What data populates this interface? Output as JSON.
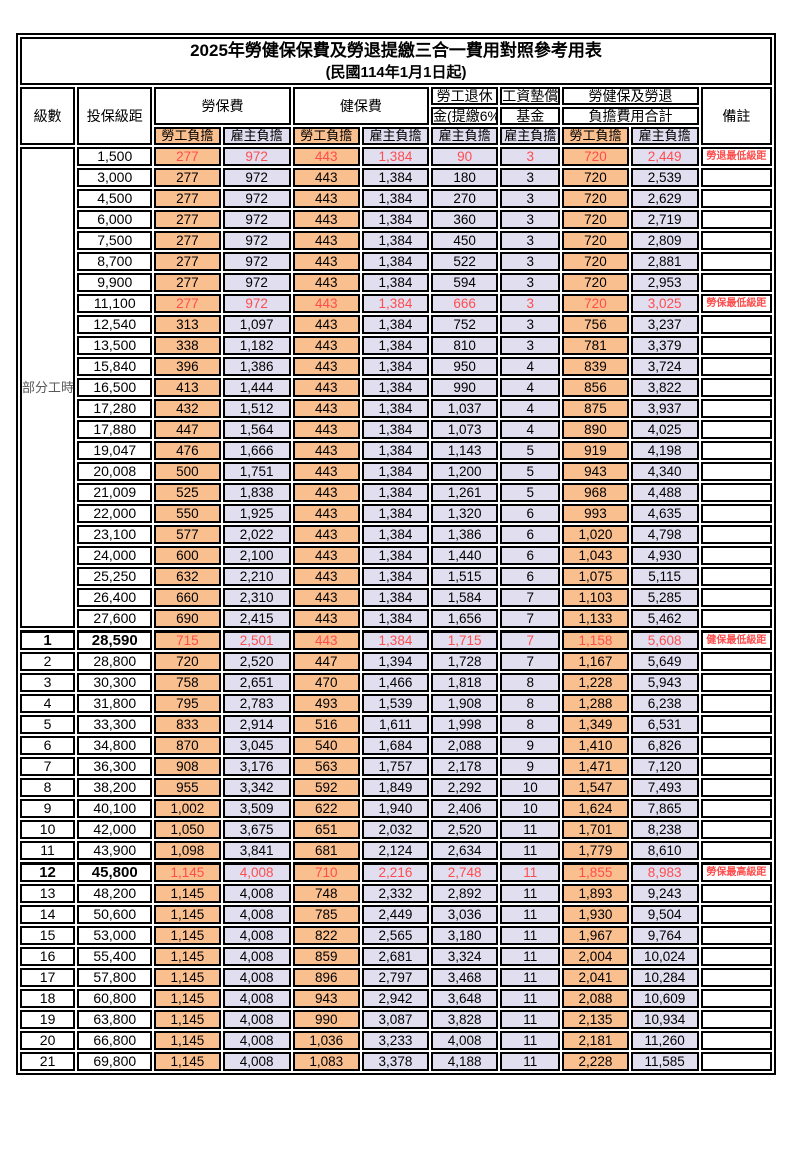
{
  "title": "2025年勞健保保費及勞退提繳三合一費用對照參考用表",
  "subtitle": "(民國114年1月1日起)",
  "header": {
    "level": "級數",
    "bracket": "投保級距",
    "labor_insurance": "勞保費",
    "health_insurance": "健保費",
    "pension_line1": "勞工退休",
    "pension_line2": "金(提繳6%)",
    "wage_fund_line1": "工資墊償",
    "wage_fund_line2": "基金",
    "total_line1": "勞健保及勞退",
    "total_line2": "負擔費用合計",
    "remark": "備註",
    "employee_share": "勞工負擔",
    "employer_share": "雇主負擔"
  },
  "merged_level_label": "部分工時",
  "part_time_rowspan": 23,
  "colors": {
    "employee_bg": "#FABF8F",
    "employer_bg": "#E1DEF0",
    "highlight_text": "#FF4D4D",
    "border": "#000000"
  },
  "rows": [
    {
      "level": "",
      "bracket": "1,500",
      "li_emp": "277",
      "li_er": "972",
      "hi_emp": "443",
      "hi_er": "1,384",
      "pension": "90",
      "fund": "3",
      "tot_emp": "720",
      "tot_er": "2,449",
      "remark": "勞退最低級距",
      "red": true,
      "bold": false
    },
    {
      "level": "",
      "bracket": "3,000",
      "li_emp": "277",
      "li_er": "972",
      "hi_emp": "443",
      "hi_er": "1,384",
      "pension": "180",
      "fund": "3",
      "tot_emp": "720",
      "tot_er": "2,539",
      "remark": "",
      "red": false,
      "bold": false
    },
    {
      "level": "",
      "bracket": "4,500",
      "li_emp": "277",
      "li_er": "972",
      "hi_emp": "443",
      "hi_er": "1,384",
      "pension": "270",
      "fund": "3",
      "tot_emp": "720",
      "tot_er": "2,629",
      "remark": "",
      "red": false,
      "bold": false
    },
    {
      "level": "",
      "bracket": "6,000",
      "li_emp": "277",
      "li_er": "972",
      "hi_emp": "443",
      "hi_er": "1,384",
      "pension": "360",
      "fund": "3",
      "tot_emp": "720",
      "tot_er": "2,719",
      "remark": "",
      "red": false,
      "bold": false
    },
    {
      "level": "",
      "bracket": "7,500",
      "li_emp": "277",
      "li_er": "972",
      "hi_emp": "443",
      "hi_er": "1,384",
      "pension": "450",
      "fund": "3",
      "tot_emp": "720",
      "tot_er": "2,809",
      "remark": "",
      "red": false,
      "bold": false
    },
    {
      "level": "",
      "bracket": "8,700",
      "li_emp": "277",
      "li_er": "972",
      "hi_emp": "443",
      "hi_er": "1,384",
      "pension": "522",
      "fund": "3",
      "tot_emp": "720",
      "tot_er": "2,881",
      "remark": "",
      "red": false,
      "bold": false
    },
    {
      "level": "",
      "bracket": "9,900",
      "li_emp": "277",
      "li_er": "972",
      "hi_emp": "443",
      "hi_er": "1,384",
      "pension": "594",
      "fund": "3",
      "tot_emp": "720",
      "tot_er": "2,953",
      "remark": "",
      "red": false,
      "bold": false
    },
    {
      "level": "",
      "bracket": "11,100",
      "li_emp": "277",
      "li_er": "972",
      "hi_emp": "443",
      "hi_er": "1,384",
      "pension": "666",
      "fund": "3",
      "tot_emp": "720",
      "tot_er": "3,025",
      "remark": "勞保最低級距",
      "red": true,
      "bold": false
    },
    {
      "level": "",
      "bracket": "12,540",
      "li_emp": "313",
      "li_er": "1,097",
      "hi_emp": "443",
      "hi_er": "1,384",
      "pension": "752",
      "fund": "3",
      "tot_emp": "756",
      "tot_er": "3,237",
      "remark": "",
      "red": false,
      "bold": false
    },
    {
      "level": "",
      "bracket": "13,500",
      "li_emp": "338",
      "li_er": "1,182",
      "hi_emp": "443",
      "hi_er": "1,384",
      "pension": "810",
      "fund": "3",
      "tot_emp": "781",
      "tot_er": "3,379",
      "remark": "",
      "red": false,
      "bold": false
    },
    {
      "level": "",
      "bracket": "15,840",
      "li_emp": "396",
      "li_er": "1,386",
      "hi_emp": "443",
      "hi_er": "1,384",
      "pension": "950",
      "fund": "4",
      "tot_emp": "839",
      "tot_er": "3,724",
      "remark": "",
      "red": false,
      "bold": false
    },
    {
      "level": "",
      "bracket": "16,500",
      "li_emp": "413",
      "li_er": "1,444",
      "hi_emp": "443",
      "hi_er": "1,384",
      "pension": "990",
      "fund": "4",
      "tot_emp": "856",
      "tot_er": "3,822",
      "remark": "",
      "red": false,
      "bold": false
    },
    {
      "level": "",
      "bracket": "17,280",
      "li_emp": "432",
      "li_er": "1,512",
      "hi_emp": "443",
      "hi_er": "1,384",
      "pension": "1,037",
      "fund": "4",
      "tot_emp": "875",
      "tot_er": "3,937",
      "remark": "",
      "red": false,
      "bold": false
    },
    {
      "level": "",
      "bracket": "17,880",
      "li_emp": "447",
      "li_er": "1,564",
      "hi_emp": "443",
      "hi_er": "1,384",
      "pension": "1,073",
      "fund": "4",
      "tot_emp": "890",
      "tot_er": "4,025",
      "remark": "",
      "red": false,
      "bold": false
    },
    {
      "level": "",
      "bracket": "19,047",
      "li_emp": "476",
      "li_er": "1,666",
      "hi_emp": "443",
      "hi_er": "1,384",
      "pension": "1,143",
      "fund": "5",
      "tot_emp": "919",
      "tot_er": "4,198",
      "remark": "",
      "red": false,
      "bold": false
    },
    {
      "level": "",
      "bracket": "20,008",
      "li_emp": "500",
      "li_er": "1,751",
      "hi_emp": "443",
      "hi_er": "1,384",
      "pension": "1,200",
      "fund": "5",
      "tot_emp": "943",
      "tot_er": "4,340",
      "remark": "",
      "red": false,
      "bold": false
    },
    {
      "level": "",
      "bracket": "21,009",
      "li_emp": "525",
      "li_er": "1,838",
      "hi_emp": "443",
      "hi_er": "1,384",
      "pension": "1,261",
      "fund": "5",
      "tot_emp": "968",
      "tot_er": "4,488",
      "remark": "",
      "red": false,
      "bold": false
    },
    {
      "level": "",
      "bracket": "22,000",
      "li_emp": "550",
      "li_er": "1,925",
      "hi_emp": "443",
      "hi_er": "1,384",
      "pension": "1,320",
      "fund": "6",
      "tot_emp": "993",
      "tot_er": "4,635",
      "remark": "",
      "red": false,
      "bold": false
    },
    {
      "level": "",
      "bracket": "23,100",
      "li_emp": "577",
      "li_er": "2,022",
      "hi_emp": "443",
      "hi_er": "1,384",
      "pension": "1,386",
      "fund": "6",
      "tot_emp": "1,020",
      "tot_er": "4,798",
      "remark": "",
      "red": false,
      "bold": false
    },
    {
      "level": "",
      "bracket": "24,000",
      "li_emp": "600",
      "li_er": "2,100",
      "hi_emp": "443",
      "hi_er": "1,384",
      "pension": "1,440",
      "fund": "6",
      "tot_emp": "1,043",
      "tot_er": "4,930",
      "remark": "",
      "red": false,
      "bold": false
    },
    {
      "level": "",
      "bracket": "25,250",
      "li_emp": "632",
      "li_er": "2,210",
      "hi_emp": "443",
      "hi_er": "1,384",
      "pension": "1,515",
      "fund": "6",
      "tot_emp": "1,075",
      "tot_er": "5,115",
      "remark": "",
      "red": false,
      "bold": false
    },
    {
      "level": "",
      "bracket": "26,400",
      "li_emp": "660",
      "li_er": "2,310",
      "hi_emp": "443",
      "hi_er": "1,384",
      "pension": "1,584",
      "fund": "7",
      "tot_emp": "1,103",
      "tot_er": "5,285",
      "remark": "",
      "red": false,
      "bold": false
    },
    {
      "level": "",
      "bracket": "27,600",
      "li_emp": "690",
      "li_er": "2,415",
      "hi_emp": "443",
      "hi_er": "1,384",
      "pension": "1,656",
      "fund": "7",
      "tot_emp": "1,133",
      "tot_er": "5,462",
      "remark": "",
      "red": false,
      "bold": false
    },
    {
      "level": "1",
      "bracket": "28,590",
      "li_emp": "715",
      "li_er": "2,501",
      "hi_emp": "443",
      "hi_er": "1,384",
      "pension": "1,715",
      "fund": "7",
      "tot_emp": "1,158",
      "tot_er": "5,608",
      "remark": "健保最低級距",
      "red": true,
      "bold": true
    },
    {
      "level": "2",
      "bracket": "28,800",
      "li_emp": "720",
      "li_er": "2,520",
      "hi_emp": "447",
      "hi_er": "1,394",
      "pension": "1,728",
      "fund": "7",
      "tot_emp": "1,167",
      "tot_er": "5,649",
      "remark": "",
      "red": false,
      "bold": false
    },
    {
      "level": "3",
      "bracket": "30,300",
      "li_emp": "758",
      "li_er": "2,651",
      "hi_emp": "470",
      "hi_er": "1,466",
      "pension": "1,818",
      "fund": "8",
      "tot_emp": "1,228",
      "tot_er": "5,943",
      "remark": "",
      "red": false,
      "bold": false
    },
    {
      "level": "4",
      "bracket": "31,800",
      "li_emp": "795",
      "li_er": "2,783",
      "hi_emp": "493",
      "hi_er": "1,539",
      "pension": "1,908",
      "fund": "8",
      "tot_emp": "1,288",
      "tot_er": "6,238",
      "remark": "",
      "red": false,
      "bold": false
    },
    {
      "level": "5",
      "bracket": "33,300",
      "li_emp": "833",
      "li_er": "2,914",
      "hi_emp": "516",
      "hi_er": "1,611",
      "pension": "1,998",
      "fund": "8",
      "tot_emp": "1,349",
      "tot_er": "6,531",
      "remark": "",
      "red": false,
      "bold": false
    },
    {
      "level": "6",
      "bracket": "34,800",
      "li_emp": "870",
      "li_er": "3,045",
      "hi_emp": "540",
      "hi_er": "1,684",
      "pension": "2,088",
      "fund": "9",
      "tot_emp": "1,410",
      "tot_er": "6,826",
      "remark": "",
      "red": false,
      "bold": false
    },
    {
      "level": "7",
      "bracket": "36,300",
      "li_emp": "908",
      "li_er": "3,176",
      "hi_emp": "563",
      "hi_er": "1,757",
      "pension": "2,178",
      "fund": "9",
      "tot_emp": "1,471",
      "tot_er": "7,120",
      "remark": "",
      "red": false,
      "bold": false
    },
    {
      "level": "8",
      "bracket": "38,200",
      "li_emp": "955",
      "li_er": "3,342",
      "hi_emp": "592",
      "hi_er": "1,849",
      "pension": "2,292",
      "fund": "10",
      "tot_emp": "1,547",
      "tot_er": "7,493",
      "remark": "",
      "red": false,
      "bold": false
    },
    {
      "level": "9",
      "bracket": "40,100",
      "li_emp": "1,002",
      "li_er": "3,509",
      "hi_emp": "622",
      "hi_er": "1,940",
      "pension": "2,406",
      "fund": "10",
      "tot_emp": "1,624",
      "tot_er": "7,865",
      "remark": "",
      "red": false,
      "bold": false
    },
    {
      "level": "10",
      "bracket": "42,000",
      "li_emp": "1,050",
      "li_er": "3,675",
      "hi_emp": "651",
      "hi_er": "2,032",
      "pension": "2,520",
      "fund": "11",
      "tot_emp": "1,701",
      "tot_er": "8,238",
      "remark": "",
      "red": false,
      "bold": false
    },
    {
      "level": "11",
      "bracket": "43,900",
      "li_emp": "1,098",
      "li_er": "3,841",
      "hi_emp": "681",
      "hi_er": "2,124",
      "pension": "2,634",
      "fund": "11",
      "tot_emp": "1,779",
      "tot_er": "8,610",
      "remark": "",
      "red": false,
      "bold": false
    },
    {
      "level": "12",
      "bracket": "45,800",
      "li_emp": "1,145",
      "li_er": "4,008",
      "hi_emp": "710",
      "hi_er": "2,216",
      "pension": "2,748",
      "fund": "11",
      "tot_emp": "1,855",
      "tot_er": "8,983",
      "remark": "勞保最高級距",
      "red": true,
      "bold": true
    },
    {
      "level": "13",
      "bracket": "48,200",
      "li_emp": "1,145",
      "li_er": "4,008",
      "hi_emp": "748",
      "hi_er": "2,332",
      "pension": "2,892",
      "fund": "11",
      "tot_emp": "1,893",
      "tot_er": "9,243",
      "remark": "",
      "red": false,
      "bold": false
    },
    {
      "level": "14",
      "bracket": "50,600",
      "li_emp": "1,145",
      "li_er": "4,008",
      "hi_emp": "785",
      "hi_er": "2,449",
      "pension": "3,036",
      "fund": "11",
      "tot_emp": "1,930",
      "tot_er": "9,504",
      "remark": "",
      "red": false,
      "bold": false
    },
    {
      "level": "15",
      "bracket": "53,000",
      "li_emp": "1,145",
      "li_er": "4,008",
      "hi_emp": "822",
      "hi_er": "2,565",
      "pension": "3,180",
      "fund": "11",
      "tot_emp": "1,967",
      "tot_er": "9,764",
      "remark": "",
      "red": false,
      "bold": false
    },
    {
      "level": "16",
      "bracket": "55,400",
      "li_emp": "1,145",
      "li_er": "4,008",
      "hi_emp": "859",
      "hi_er": "2,681",
      "pension": "3,324",
      "fund": "11",
      "tot_emp": "2,004",
      "tot_er": "10,024",
      "remark": "",
      "red": false,
      "bold": false
    },
    {
      "level": "17",
      "bracket": "57,800",
      "li_emp": "1,145",
      "li_er": "4,008",
      "hi_emp": "896",
      "hi_er": "2,797",
      "pension": "3,468",
      "fund": "11",
      "tot_emp": "2,041",
      "tot_er": "10,284",
      "remark": "",
      "red": false,
      "bold": false
    },
    {
      "level": "18",
      "bracket": "60,800",
      "li_emp": "1,145",
      "li_er": "4,008",
      "hi_emp": "943",
      "hi_er": "2,942",
      "pension": "3,648",
      "fund": "11",
      "tot_emp": "2,088",
      "tot_er": "10,609",
      "remark": "",
      "red": false,
      "bold": false
    },
    {
      "level": "19",
      "bracket": "63,800",
      "li_emp": "1,145",
      "li_er": "4,008",
      "hi_emp": "990",
      "hi_er": "3,087",
      "pension": "3,828",
      "fund": "11",
      "tot_emp": "2,135",
      "tot_er": "10,934",
      "remark": "",
      "red": false,
      "bold": false
    },
    {
      "level": "20",
      "bracket": "66,800",
      "li_emp": "1,145",
      "li_er": "4,008",
      "hi_emp": "1,036",
      "hi_er": "3,233",
      "pension": "4,008",
      "fund": "11",
      "tot_emp": "2,181",
      "tot_er": "11,260",
      "remark": "",
      "red": false,
      "bold": false
    },
    {
      "level": "21",
      "bracket": "69,800",
      "li_emp": "1,145",
      "li_er": "4,008",
      "hi_emp": "1,083",
      "hi_er": "3,378",
      "pension": "4,188",
      "fund": "11",
      "tot_emp": "2,228",
      "tot_er": "11,585",
      "remark": "",
      "red": false,
      "bold": false
    }
  ]
}
